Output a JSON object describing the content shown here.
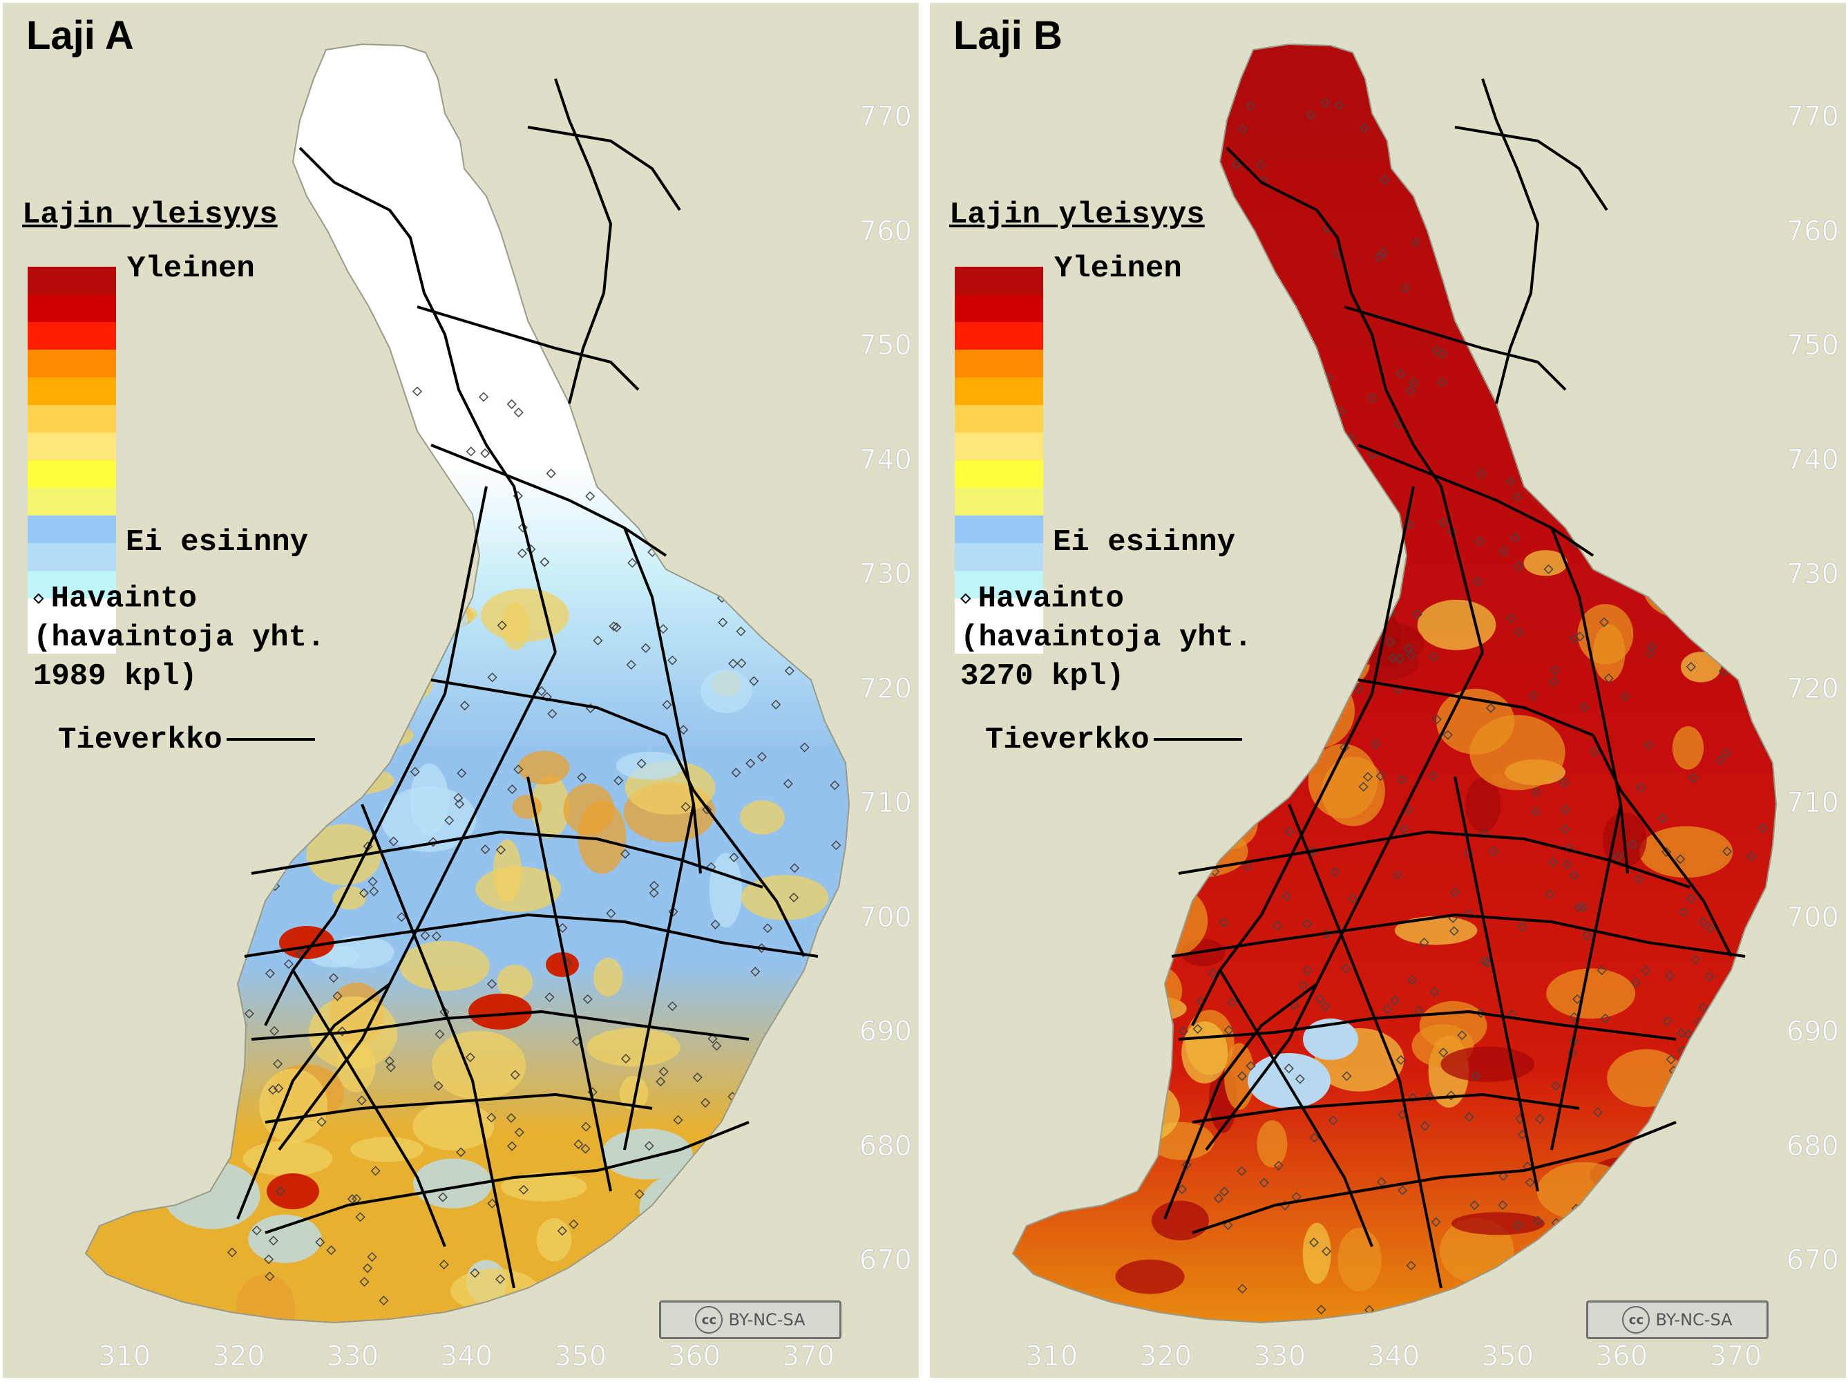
{
  "legend": {
    "title": "Lajin yleisyys",
    "high_label": "Yleinen",
    "low_label": "Ei esiinny",
    "observation_label": "Havainto",
    "roads_label": "Tieverkko",
    "ramp_colors": [
      "#b40a0a",
      "#d00000",
      "#ff1e00",
      "#ff8c00",
      "#ffaa00",
      "#ffd250",
      "#ffe678",
      "#ffff40",
      "#f5f56e",
      "#96c8f5",
      "#b4dcf8",
      "#bef5f8",
      "#ffffff",
      "#ffffff"
    ]
  },
  "y_ticks": [
    "770",
    "760",
    "750",
    "740",
    "730",
    "720",
    "710",
    "700",
    "690",
    "680",
    "670"
  ],
  "x_ticks": [
    "310",
    "320",
    "330",
    "340",
    "350",
    "360",
    "370"
  ],
  "license": "BY-NC-SA",
  "license_mark": "cc",
  "panels": [
    {
      "title": "Laji A",
      "observations_text": "(havaintoja yht.",
      "observations_count": "1989 kpl)",
      "abundance": "low",
      "colors": {
        "north": "#ffffff",
        "mid": "#c8eef8",
        "south": "#96c3ee",
        "hot": "#e8b030",
        "peak": "#cc2200"
      }
    },
    {
      "title": "Laji B",
      "observations_text": "(havaintoja yht.",
      "observations_count": "3270 kpl)",
      "abundance": "high",
      "colors": {
        "north": "#b00a0a",
        "mid": "#c20c0c",
        "south": "#d21a0a",
        "hot": "#e88a10",
        "peak": "#b8d8f0"
      }
    }
  ]
}
